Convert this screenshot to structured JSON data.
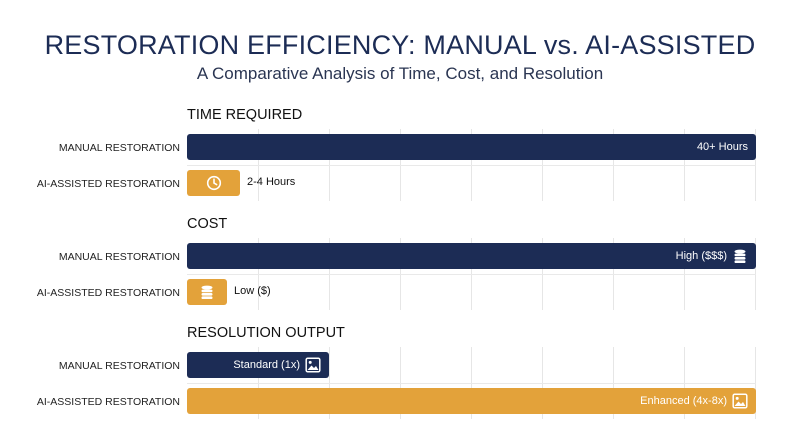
{
  "title": "RESTORATION EFFICIENCY: MANUAL vs. AI-ASSISTED",
  "subtitle": "A Comparative Analysis of Time, Cost, and Resolution",
  "colors": {
    "manual": "#1c2c55",
    "ai": "#e3a23a",
    "grid": "#e6e6e6"
  },
  "chart_data": [
    {
      "type": "bar",
      "orientation": "horizontal",
      "title": "TIME REQUIRED",
      "categories": [
        "MANUAL RESTORATION",
        "AI-ASSISTED RESTORATION"
      ],
      "values": [
        1.0,
        0.094
      ],
      "data_labels": [
        "40+ Hours",
        "2-4 Hours"
      ],
      "icons": [
        "",
        "clock-icon"
      ],
      "colors": [
        "#1c2c55",
        "#e3a23a"
      ]
    },
    {
      "type": "bar",
      "orientation": "horizontal",
      "title": "COST",
      "categories": [
        "MANUAL RESTORATION",
        "AI-ASSISTED RESTORATION"
      ],
      "values": [
        1.0,
        0.07
      ],
      "data_labels": [
        "High ($$$)",
        "Low ($)"
      ],
      "icons": [
        "coin-stack-icon",
        "coin-stack-icon"
      ],
      "colors": [
        "#1c2c55",
        "#e3a23a"
      ]
    },
    {
      "type": "bar",
      "orientation": "horizontal",
      "title": "RESOLUTION OUTPUT",
      "categories": [
        "MANUAL RESTORATION",
        "AI-ASSISTED RESTORATION"
      ],
      "values": [
        0.25,
        1.0
      ],
      "data_labels": [
        "Standard (1x)",
        "Enhanced (4x-8x)"
      ],
      "icons": [
        "image-icon",
        "image-icon"
      ],
      "colors": [
        "#1c2c55",
        "#e3a23a"
      ]
    }
  ]
}
